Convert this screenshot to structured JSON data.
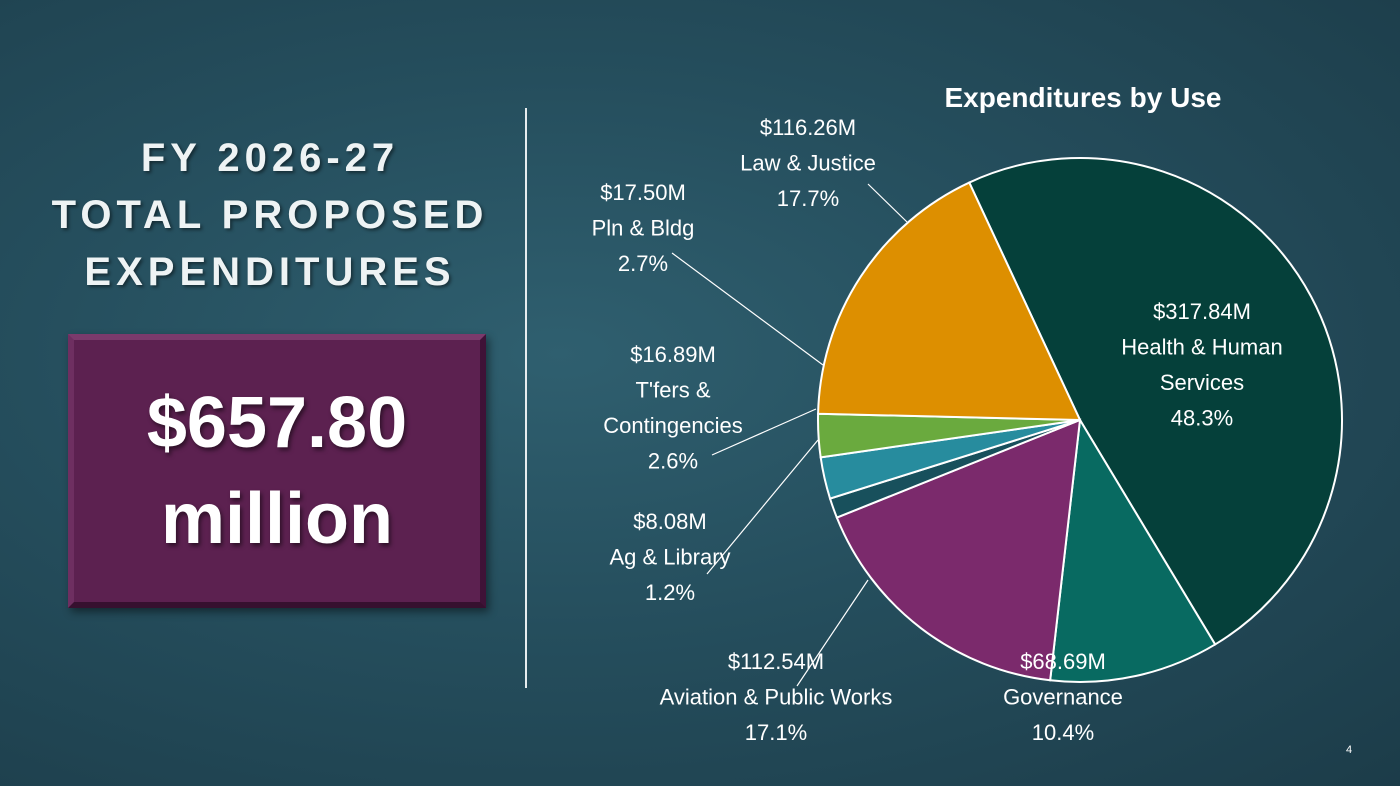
{
  "headline": {
    "line1": "FY 2026-27",
    "line2": "TOTAL PROPOSED",
    "line3": "EXPENDITURES"
  },
  "total": {
    "amount": "$657.80",
    "unit": "million"
  },
  "slide_number": "4",
  "chart_data": {
    "type": "pie",
    "title": "Expenditures by Use",
    "slices": [
      {
        "name": "Health & Human Services",
        "label_lines": [
          "$317.84M",
          "Health & Human",
          "Services",
          "48.3%"
        ],
        "amount": "$317.84M",
        "value": 317.84,
        "percent": 48.3,
        "color": "#05403a"
      },
      {
        "name": "Governance",
        "label_lines": [
          "$68.69M",
          "Governance",
          "10.4%"
        ],
        "amount": "$68.69M",
        "value": 68.69,
        "percent": 10.4,
        "color": "#086a61"
      },
      {
        "name": "Aviation & Public Works",
        "label_lines": [
          "$112.54M",
          "Aviation & Public Works",
          "17.1%"
        ],
        "amount": "$112.54M",
        "value": 112.54,
        "percent": 17.1,
        "color": "#7b2a6c"
      },
      {
        "name": "Ag & Library",
        "label_lines": [
          "$8.08M",
          "Ag & Library",
          "1.2%"
        ],
        "amount": "$8.08M",
        "value": 8.08,
        "percent": 1.2,
        "color": "#18505c"
      },
      {
        "name": "T'fers & Contingencies",
        "label_lines": [
          "$16.89M",
          "T'fers &",
          "Contingencies",
          "2.6%"
        ],
        "amount": "$16.89M",
        "value": 16.89,
        "percent": 2.6,
        "color": "#278c9e"
      },
      {
        "name": "Pln & Bldg",
        "label_lines": [
          "$17.50M",
          "Pln & Bldg",
          "2.7%"
        ],
        "amount": "$17.50M",
        "value": 17.5,
        "percent": 2.7,
        "color": "#6aaa3e"
      },
      {
        "name": "Law & Justice",
        "label_lines": [
          "$116.26M",
          "Law & Justice",
          "17.7%"
        ],
        "amount": "$116.26M",
        "value": 116.26,
        "percent": 17.7,
        "color": "#dd8f00"
      }
    ],
    "start_direction": "top",
    "direction": "clockwise",
    "legend": "none"
  }
}
